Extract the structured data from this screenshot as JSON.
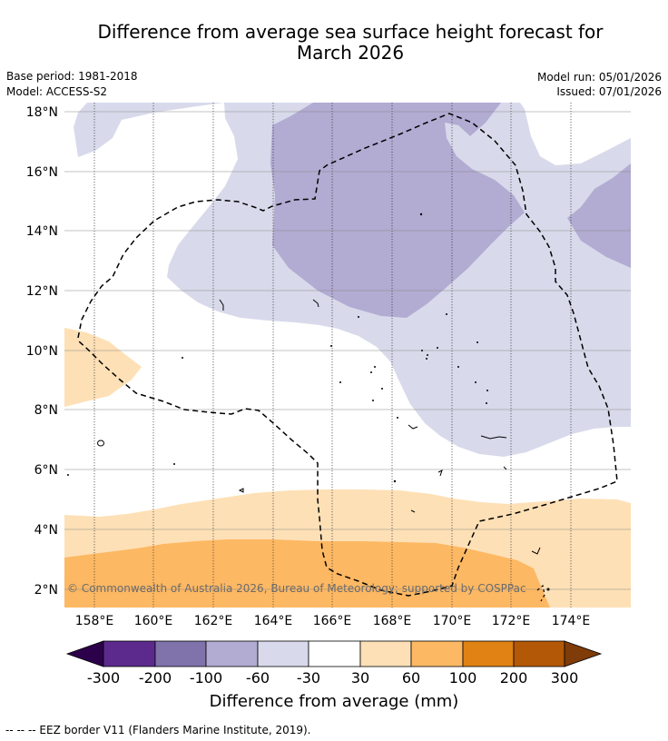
{
  "title_line1": "Difference from average sea surface height forecast for",
  "title_line2": "March 2026",
  "base_period": "Base period: 1981-2018",
  "model": "Model: ACCESS-S2",
  "model_run": "Model run: 05/01/2026",
  "issued": "Issued: 07/01/2026",
  "copyright": "© Commonwealth of Australia 2026, Bureau of Meteorology; supported by COSPPac",
  "footnote": "--  --  -- EEZ border V11 (Flanders Marine Institute, 2019).",
  "lat_ticks": [
    "18°N",
    "16°N",
    "14°N",
    "12°N",
    "10°N",
    "8°N",
    "6°N",
    "4°N",
    "2°N"
  ],
  "lon_ticks": [
    "158°E",
    "160°E",
    "162°E",
    "164°E",
    "166°E",
    "168°E",
    "170°E",
    "172°E",
    "174°E"
  ],
  "colorbar": {
    "title": "Difference from average (mm)",
    "labels": [
      "-300",
      "-200",
      "-100",
      "-60",
      "-30",
      "30",
      "60",
      "100",
      "200",
      "300"
    ],
    "colors": {
      "below_min": "#2d004b",
      "bins": [
        "#5b2a8c",
        "#8073ac",
        "#b2abd2",
        "#d8daeb",
        "#ffffff",
        "#fee0b6",
        "#fdb863",
        "#e08214",
        "#b35806"
      ],
      "above_max": "#7f3b08"
    }
  },
  "map_fill_colors": {
    "band_minus60_minus30": "#d8daeb",
    "band_minus100_minus60": "#b2abd2",
    "band_30_60": "#fee0b6",
    "band_60_100": "#fdb863",
    "neutral": "#ffffff"
  }
}
